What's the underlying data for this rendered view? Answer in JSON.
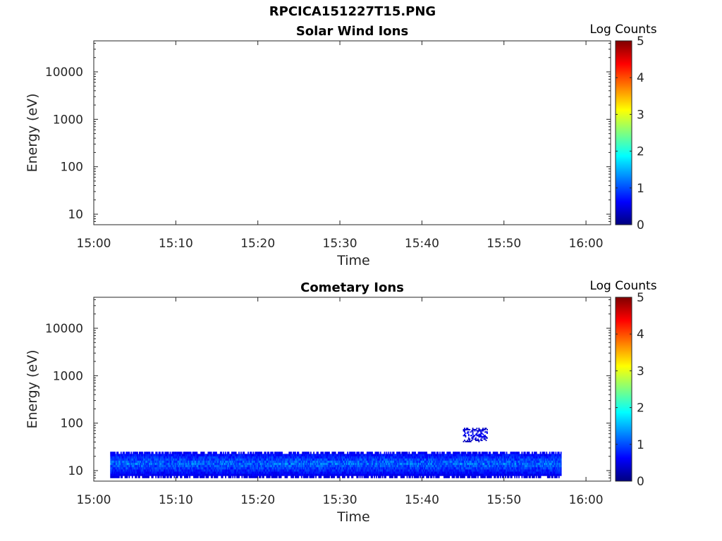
{
  "figure": {
    "title": "RPCICA151227T15.PNG"
  },
  "colorbar": {
    "label": "Log Counts",
    "ticks": [
      "0",
      "1",
      "2",
      "3",
      "4",
      "5"
    ],
    "colormap": "jet",
    "colors": [
      "#00007f",
      "#0000ff",
      "#007fff",
      "#00ffff",
      "#7fff7f",
      "#ffff00",
      "#ff7f00",
      "#ff0000",
      "#7f0000"
    ]
  },
  "chart_data": [
    {
      "type": "heatmap",
      "title": "Solar Wind Ions",
      "xlabel": "Time",
      "ylabel": "Energy (eV)",
      "x_ticks": [
        "15:00",
        "15:10",
        "15:20",
        "15:30",
        "15:40",
        "15:50",
        "16:00"
      ],
      "y_ticks": [
        "10",
        "100",
        "1000",
        "10000"
      ],
      "y_scale": "log",
      "xlim": [
        "15:00",
        "16:03"
      ],
      "ylim": [
        6,
        45000
      ],
      "clim": [
        0,
        5
      ],
      "regions": []
    },
    {
      "type": "heatmap",
      "title": "Cometary Ions",
      "xlabel": "Time",
      "ylabel": "Energy (eV)",
      "x_ticks": [
        "15:00",
        "15:10",
        "15:20",
        "15:30",
        "15:40",
        "15:50",
        "16:00"
      ],
      "y_ticks": [
        "10",
        "100",
        "1000",
        "10000"
      ],
      "y_scale": "log",
      "xlim": [
        "15:00",
        "16:03"
      ],
      "ylim": [
        6,
        45000
      ],
      "clim": [
        0,
        5
      ],
      "regions": [
        {
          "t_start": "15:02",
          "t_end": "15:57",
          "e_low": 7,
          "e_high": 25,
          "log_counts": [
            0.3,
            1.5
          ]
        },
        {
          "t_start": "15:45",
          "t_end": "15:48",
          "e_low": 40,
          "e_high": 80,
          "log_counts": [
            0.2,
            0.8
          ]
        }
      ]
    }
  ]
}
